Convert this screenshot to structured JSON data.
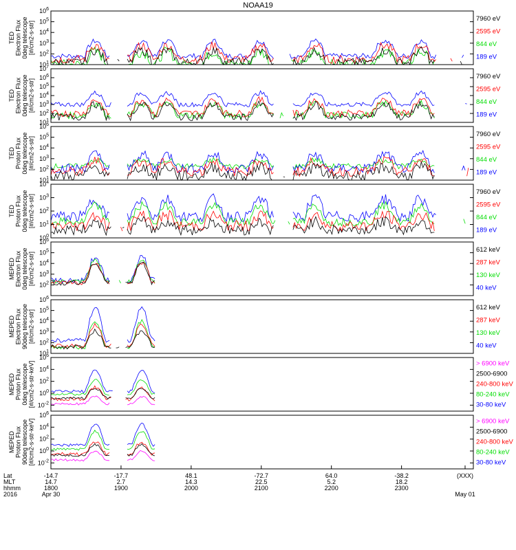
{
  "title": "NOAA19",
  "colors": {
    "blue": "#0000ff",
    "red": "#ff0000",
    "green": "#00dd00",
    "black": "#000000",
    "magenta": "#ff00ff"
  },
  "chart_data": [
    {
      "type": "line",
      "ylabel": [
        "TED",
        "Electron Flux",
        "0deg telescope",
        "[#/cm2-s-str]"
      ],
      "ylog": true,
      "yexp": [
        1,
        6
      ],
      "ytick_exps": [
        1,
        2,
        3,
        4,
        5,
        6
      ],
      "legend": [
        {
          "label": "7960 eV",
          "color": "black"
        },
        {
          "label": "2595 eV",
          "color": "red"
        },
        {
          "label": "844 eV",
          "color": "green"
        },
        {
          "label": "189 eV",
          "color": "blue"
        }
      ],
      "series": [
        {
          "color": "blue",
          "base": 1.8,
          "amp": 1.4,
          "noise": 0.25
        },
        {
          "color": "green",
          "base": 1.0,
          "amp": 1.2,
          "noise": 0.5
        },
        {
          "color": "red",
          "base": 1.5,
          "amp": 1.3,
          "noise": 0.4
        },
        {
          "color": "black",
          "base": 1.2,
          "amp": 1.1,
          "noise": 0.4
        }
      ]
    },
    {
      "type": "line",
      "ylabel": [
        "TED",
        "Electron Flux",
        "0deg telescope",
        "[#/cm2-s-str]"
      ],
      "ylog": true,
      "yexp": [
        1,
        7
      ],
      "ytick_exps": [
        1,
        2,
        3,
        4,
        5,
        6,
        7
      ],
      "legend": [
        {
          "label": "7960 eV",
          "color": "black"
        },
        {
          "label": "2595 eV",
          "color": "red"
        },
        {
          "label": "844 eV",
          "color": "green"
        },
        {
          "label": "189 eV",
          "color": "blue"
        }
      ],
      "series": [
        {
          "color": "blue",
          "base": 3.0,
          "amp": 1.3,
          "noise": 0.25
        },
        {
          "color": "green",
          "base": 1.8,
          "amp": 1.3,
          "noise": 0.4
        },
        {
          "color": "red",
          "base": 2.0,
          "amp": 1.5,
          "noise": 0.4
        },
        {
          "color": "black",
          "base": 1.6,
          "amp": 1.4,
          "noise": 0.4
        }
      ]
    },
    {
      "type": "line",
      "ylabel": [
        "TED",
        "Proton Flux",
        "0deg telescope",
        "[#/cm2-s-str]"
      ],
      "ylog": true,
      "yexp": [
        1,
        6
      ],
      "ytick_exps": [
        1,
        2,
        3,
        4,
        5,
        6
      ],
      "legend": [
        {
          "label": "7960 eV",
          "color": "black"
        },
        {
          "label": "2595 eV",
          "color": "red"
        },
        {
          "label": "844 eV",
          "color": "green"
        },
        {
          "label": "189 eV",
          "color": "blue"
        }
      ],
      "series": [
        {
          "color": "green",
          "base": 2.3,
          "amp": 0.6,
          "noise": 0.25
        },
        {
          "color": "blue",
          "base": 2.1,
          "amp": 1.3,
          "noise": 0.45
        },
        {
          "color": "red",
          "base": 1.8,
          "amp": 1.0,
          "noise": 0.45
        },
        {
          "color": "black",
          "base": 1.4,
          "amp": 0.8,
          "noise": 0.5
        }
      ]
    },
    {
      "type": "line",
      "ylabel": [
        "TED",
        "Proton Flux",
        "0deg telescope",
        "[#/cm2-s-str]"
      ],
      "ylog": true,
      "yexp": [
        0,
        4
      ],
      "ytick_exps": [
        0,
        1,
        2,
        3,
        4
      ],
      "legend": [
        {
          "label": "7960 eV",
          "color": "black"
        },
        {
          "label": "2595 eV",
          "color": "red"
        },
        {
          "label": "844 eV",
          "color": "green"
        },
        {
          "label": "189 eV",
          "color": "blue"
        }
      ],
      "series": [
        {
          "color": "blue",
          "base": 1.6,
          "amp": 1.3,
          "noise": 0.4
        },
        {
          "color": "green",
          "base": 1.2,
          "amp": 1.2,
          "noise": 0.3
        },
        {
          "color": "red",
          "base": 0.9,
          "amp": 0.8,
          "noise": 0.4
        },
        {
          "color": "black",
          "base": 0.6,
          "amp": 0.6,
          "noise": 0.4
        }
      ]
    },
    {
      "type": "line",
      "ylabel": [
        "MEPED",
        "Electron Flux",
        "0deg telescope",
        "[#/cm2-s-str]"
      ],
      "ylog": true,
      "yexp": [
        1,
        6
      ],
      "ytick_exps": [
        2,
        3,
        4,
        5,
        6
      ],
      "legend": [
        {
          "label": "612 keV",
          "color": "black"
        },
        {
          "label": "287 keV",
          "color": "red"
        },
        {
          "label": "130 keV",
          "color": "green"
        },
        {
          "label": "40 keV",
          "color": "blue"
        }
      ],
      "series": [
        {
          "color": "blue",
          "base": 2.4,
          "amp": 2.2,
          "noise": 0.3
        },
        {
          "color": "green",
          "base": 2.3,
          "amp": 2.0,
          "noise": 0.2
        },
        {
          "color": "red",
          "base": 2.2,
          "amp": 1.9,
          "noise": 0.2
        },
        {
          "color": "black",
          "base": 2.2,
          "amp": 1.8,
          "noise": 0.25
        }
      ]
    },
    {
      "type": "line",
      "ylabel": [
        "MEPED",
        "Electron Flux",
        "90deg telescope",
        "[#/cm2-s-str]"
      ],
      "ylog": true,
      "yexp": [
        1,
        6
      ],
      "ytick_exps": [
        1,
        2,
        3,
        4,
        5,
        6
      ],
      "legend": [
        {
          "label": "612 keV",
          "color": "black"
        },
        {
          "label": "287 keV",
          "color": "red"
        },
        {
          "label": "130 keV",
          "color": "green"
        },
        {
          "label": "40 keV",
          "color": "blue"
        }
      ],
      "series": [
        {
          "color": "blue",
          "base": 2.2,
          "amp": 3.0,
          "noise": 0.2
        },
        {
          "color": "green",
          "base": 1.6,
          "amp": 2.4,
          "noise": 0.2
        },
        {
          "color": "red",
          "base": 1.7,
          "amp": 2.0,
          "noise": 0.2
        },
        {
          "color": "black",
          "base": 1.6,
          "amp": 1.5,
          "noise": 0.2
        }
      ]
    },
    {
      "type": "line",
      "ylabel": [
        "MEPED",
        "Proton Flux",
        "0deg telescope",
        "[#/cm2-s-str-keV]"
      ],
      "ylog": true,
      "yexp": [
        -3,
        6
      ],
      "ytick_exps": [
        -2,
        0,
        2,
        4,
        6
      ],
      "legend": [
        {
          "label": "> 6900 keV",
          "color": "magenta"
        },
        {
          "label": "2500-6900",
          "color": "black"
        },
        {
          "label": "240-800 keV",
          "color": "red"
        },
        {
          "label": "80-240 keV",
          "color": "green"
        },
        {
          "label": "30-80 keV",
          "color": "blue"
        }
      ],
      "series": [
        {
          "color": "blue",
          "base": 0.3,
          "amp": 3.5,
          "noise": 0.25
        },
        {
          "color": "green",
          "base": -0.2,
          "amp": 2.5,
          "noise": 0.2
        },
        {
          "color": "red",
          "base": -1.0,
          "amp": 2.0,
          "noise": 0.3
        },
        {
          "color": "black",
          "base": -0.8,
          "amp": 1.6,
          "noise": 0.2
        },
        {
          "color": "magenta",
          "base": -1.8,
          "amp": 1.2,
          "noise": 0.2
        }
      ]
    },
    {
      "type": "line",
      "ylabel": [
        "MEPED",
        "Proton Flux",
        "90deg telescope",
        "[#/cm2-s-str-keV]"
      ],
      "ylog": true,
      "yexp": [
        -3,
        6
      ],
      "ytick_exps": [
        -2,
        0,
        2,
        4,
        6
      ],
      "legend": [
        {
          "label": "> 6900 keV",
          "color": "magenta"
        },
        {
          "label": "2500-6900",
          "color": "black"
        },
        {
          "label": "240-800 keV",
          "color": "red"
        },
        {
          "label": "80-240 keV",
          "color": "green"
        },
        {
          "label": "30-80 keV",
          "color": "blue"
        }
      ],
      "series": [
        {
          "color": "blue",
          "base": 1.0,
          "amp": 3.5,
          "noise": 0.25
        },
        {
          "color": "green",
          "base": 0.3,
          "amp": 3.0,
          "noise": 0.2
        },
        {
          "color": "red",
          "base": -0.5,
          "amp": 2.0,
          "noise": 0.3
        },
        {
          "color": "black",
          "base": -0.7,
          "amp": 1.8,
          "noise": 0.2
        },
        {
          "color": "magenta",
          "base": -1.5,
          "amp": 1.5,
          "noise": 0.2
        }
      ]
    }
  ],
  "x_axis": {
    "row_labels": [
      "Lat",
      "MLT",
      "hhmm",
      "2016"
    ],
    "ticks": [
      {
        "x": 0.0,
        "lat": "-14.7",
        "mlt": "14.7",
        "time": "1800",
        "date": "Apr 30"
      },
      {
        "x": 0.2,
        "lat": "-17.7",
        "mlt": "2.7",
        "time": "1900"
      },
      {
        "x": 0.4,
        "lat": "48.1",
        "mlt": "14.3",
        "time": "2000"
      },
      {
        "x": 0.6,
        "lat": "-72.7",
        "mlt": "22.5",
        "time": "2100"
      },
      {
        "x": 0.8,
        "lat": "64.0",
        "mlt": "5.2",
        "time": "2200"
      },
      {
        "x": 1.0,
        "lat": "-38.2",
        "mlt": "18.2",
        "time": "2300"
      },
      {
        "x": 1.2,
        "lat": "(XXX)",
        "mlt": "",
        "time": "",
        "date": "May 01"
      }
    ]
  }
}
